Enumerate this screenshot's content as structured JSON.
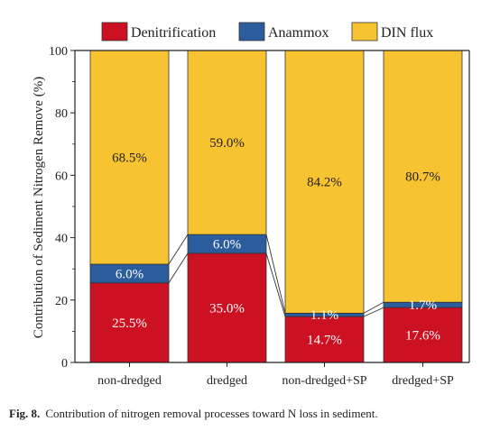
{
  "chart_data": {
    "type": "bar",
    "stacked": true,
    "categories": [
      "non-dredged",
      "dredged",
      "non-dredged+SP",
      "dredged+SP"
    ],
    "series": [
      {
        "name": "Denitrification",
        "color": "#cc1122",
        "values": [
          25.5,
          35.0,
          14.7,
          17.6
        ],
        "labels": [
          "25.5%",
          "35.0%",
          "14.7%",
          "17.6%"
        ]
      },
      {
        "name": "Anammox",
        "color": "#2b5c9c",
        "values": [
          6.0,
          6.0,
          1.1,
          1.7
        ],
        "labels": [
          "6.0%",
          "6.0%",
          "1.1%",
          "1.7%"
        ]
      },
      {
        "name": "DIN flux",
        "color": "#f7c331",
        "values": [
          68.5,
          59.0,
          84.2,
          80.7
        ],
        "labels": [
          "68.5%",
          "59.0%",
          "84.2%",
          "80.7%"
        ]
      }
    ],
    "ylabel": "Contribution of Sediment Nitrogen Remove (%)",
    "xlabel": "",
    "ylim": [
      0,
      100
    ],
    "yticks": [
      0,
      20,
      40,
      60,
      80,
      100
    ],
    "legend": "top",
    "grid": false,
    "connector_lines": true
  },
  "caption": {
    "label": "Fig. 8.",
    "text": "Contribution of nitrogen removal processes toward N loss in sediment."
  }
}
